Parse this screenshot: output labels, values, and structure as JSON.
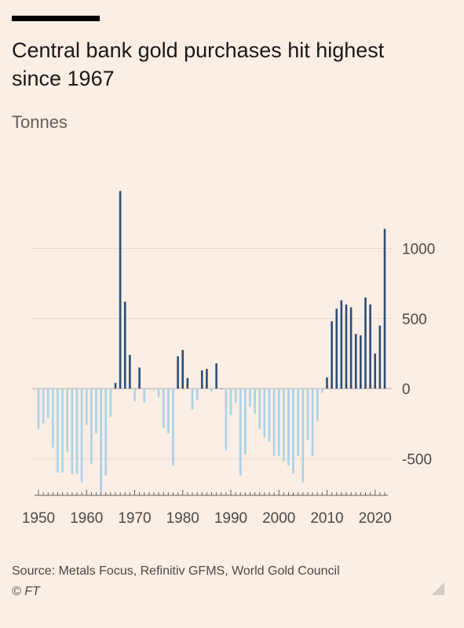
{
  "title": "Central bank gold purchases hit highest since 1967",
  "subtitle": "Tonnes",
  "source": "Source: Metals Focus, Refinitiv GFMS, World Gold Council",
  "copyright": "© FT",
  "colors": {
    "positive": "#2c4d7a",
    "negative": "#a9d2e6",
    "grid": "#e6d9ce",
    "axis": "#66605c"
  },
  "chart_data": {
    "type": "bar",
    "ylabel": "Tonnes",
    "ylim": [
      -750,
      1400
    ],
    "yticks": [
      1000,
      500,
      0,
      -500
    ],
    "ytick_labels": [
      "1000",
      "500",
      "0",
      "-500"
    ],
    "xticks": [
      1950,
      1960,
      1970,
      1980,
      1990,
      2000,
      2010,
      2020
    ],
    "xtick_labels": [
      "1950",
      "1960",
      "1970",
      "1980",
      "1990",
      "2000",
      "2010",
      "2020"
    ],
    "grid": true,
    "x": [
      1950,
      1951,
      1952,
      1953,
      1954,
      1955,
      1956,
      1957,
      1958,
      1959,
      1960,
      1961,
      1962,
      1963,
      1964,
      1965,
      1966,
      1967,
      1968,
      1969,
      1970,
      1971,
      1972,
      1973,
      1974,
      1975,
      1976,
      1977,
      1978,
      1979,
      1980,
      1981,
      1982,
      1983,
      1984,
      1985,
      1986,
      1987,
      1988,
      1989,
      1990,
      1991,
      1992,
      1993,
      1994,
      1995,
      1996,
      1997,
      1998,
      1999,
      2000,
      2001,
      2002,
      2003,
      2004,
      2005,
      2006,
      2007,
      2008,
      2009,
      2010,
      2011,
      2012,
      2013,
      2014,
      2015,
      2016,
      2017,
      2018,
      2019,
      2020,
      2021,
      2022
    ],
    "values": [
      -290,
      -250,
      -210,
      -420,
      -600,
      -600,
      -450,
      -610,
      -610,
      -670,
      -260,
      -540,
      -320,
      -740,
      -620,
      -200,
      40,
      1410,
      620,
      240,
      -90,
      150,
      -100,
      -5,
      -10,
      -60,
      -280,
      -320,
      -550,
      230,
      275,
      75,
      -150,
      -80,
      130,
      140,
      -20,
      180,
      0,
      -440,
      -190,
      -100,
      -620,
      -470,
      -130,
      -180,
      -290,
      -350,
      -380,
      -480,
      -480,
      -520,
      -550,
      -610,
      -480,
      -670,
      -370,
      -480,
      -230,
      -30,
      80,
      480,
      570,
      630,
      600,
      580,
      390,
      380,
      650,
      600,
      250,
      450,
      1140
    ]
  }
}
